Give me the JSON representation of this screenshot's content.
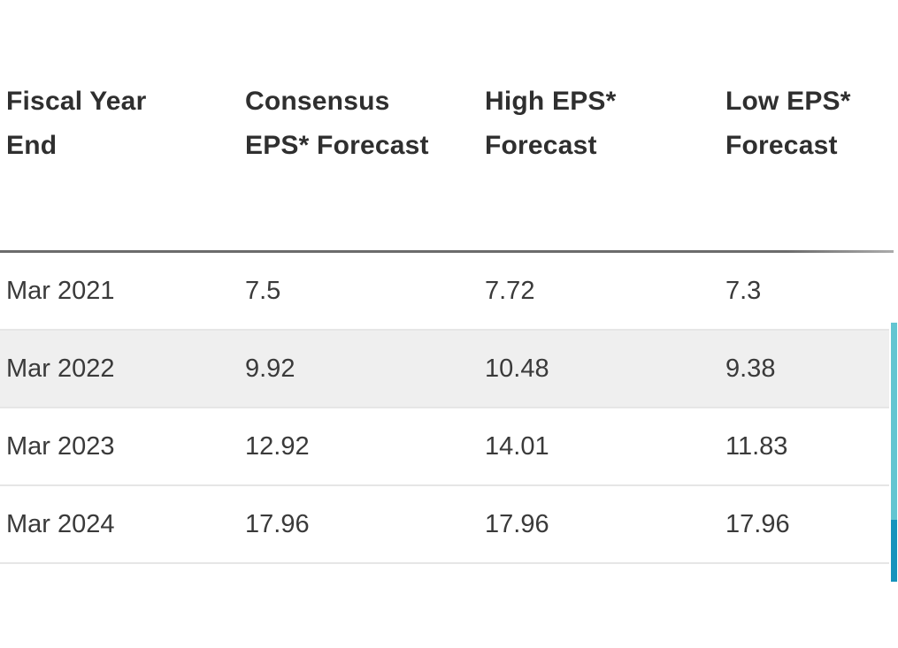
{
  "table": {
    "headers": [
      {
        "key": "fiscal_year_end",
        "line1": "Fiscal Year",
        "line2": "End"
      },
      {
        "key": "consensus_eps_forecast",
        "line1": "Consensus",
        "line2": "EPS* Forecast"
      },
      {
        "key": "high_eps_forecast",
        "line1": "High EPS*",
        "line2": "Forecast"
      },
      {
        "key": "low_eps_forecast",
        "line1": "Low EPS*",
        "line2": "Forecast"
      }
    ],
    "rows": [
      {
        "fiscal_year_end": "Mar 2021",
        "consensus": "7.5",
        "high": "7.72",
        "low": "7.3",
        "highlighted": false
      },
      {
        "fiscal_year_end": "Mar 2022",
        "consensus": "9.92",
        "high": "10.48",
        "low": "9.38",
        "highlighted": true
      },
      {
        "fiscal_year_end": "Mar 2023",
        "consensus": "12.92",
        "high": "14.01",
        "low": "11.83",
        "highlighted": false
      },
      {
        "fiscal_year_end": "Mar 2024",
        "consensus": "17.96",
        "high": "17.96",
        "low": "17.96",
        "highlighted": false
      }
    ]
  },
  "colors": {
    "header_text": "#2f2f2f",
    "cell_text": "#3a3a3a",
    "header_rule": "#6b6b6b",
    "row_separator": "#e6e6e6",
    "row_highlight": "#efefef",
    "scrollbar_track": "#63c5d1",
    "scrollbar_thumb": "#1693bc",
    "background": "#ffffff"
  }
}
